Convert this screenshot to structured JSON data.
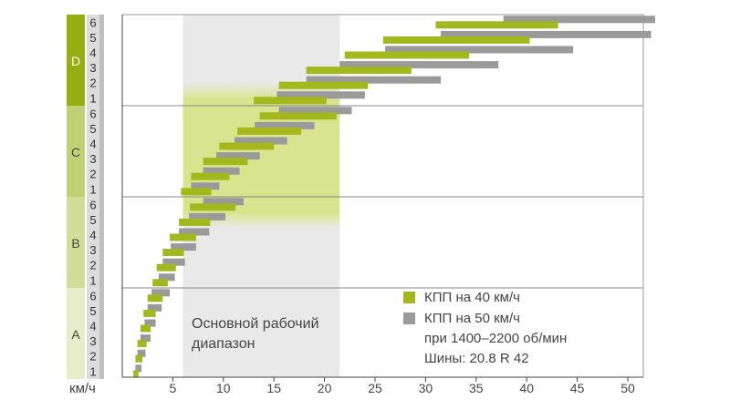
{
  "colors": {
    "series40": "#a3b81c",
    "series50": "#9a9a9a",
    "rangeA": "#e6edc8",
    "rangeB": "#d2de98",
    "rangeC": "#c0d174",
    "rangeD": "#98ad10",
    "gearCol": "#dcdcdc",
    "gearColDark": "#bfbfbf",
    "workingBand": "#e9e9e9",
    "workingBandGreen": "#d9e48f"
  },
  "legend": {
    "series40_label": "КПП на 40 км/ч",
    "series50_label": "КПП на 50 км/ч",
    "rpm_note": "при 1400–2200 об/мин",
    "tyres_note": "Шины: 20.8 R 42"
  },
  "working_range": {
    "label_line1": "Основной рабочий",
    "label_line2": "диапазон"
  },
  "chart_data": {
    "type": "bar",
    "orientation": "horizontal-floating",
    "xlabel": "км/ч",
    "xlim": [
      0,
      52
    ],
    "xticks": [
      5,
      10,
      15,
      20,
      25,
      30,
      35,
      40,
      45,
      50
    ],
    "working_range_kmh": [
      6,
      21.5
    ],
    "ranges": [
      {
        "name": "A",
        "gears": [
          "1",
          "2",
          "3",
          "4",
          "5",
          "6"
        ],
        "series40": [
          [
            1.1,
            1.6
          ],
          [
            1.3,
            2.0
          ],
          [
            1.5,
            2.4
          ],
          [
            1.8,
            2.8
          ],
          [
            2.1,
            3.3
          ],
          [
            2.5,
            4.0
          ]
        ],
        "series50": [
          [
            1.3,
            1.9
          ],
          [
            1.5,
            2.3
          ],
          [
            1.8,
            2.8
          ],
          [
            2.2,
            3.3
          ],
          [
            2.5,
            3.9
          ],
          [
            2.9,
            4.7
          ]
        ]
      },
      {
        "name": "B",
        "gears": [
          "1",
          "2",
          "3",
          "4",
          "5",
          "6"
        ],
        "series40": [
          [
            3.0,
            4.5
          ],
          [
            3.4,
            5.3
          ],
          [
            4.0,
            6.1
          ],
          [
            4.7,
            7.3
          ],
          [
            5.6,
            8.7
          ],
          [
            6.7,
            11.2
          ]
        ],
        "series50": [
          [
            3.6,
            5.2
          ],
          [
            4.0,
            6.2
          ],
          [
            4.8,
            7.3
          ],
          [
            5.6,
            8.6
          ],
          [
            6.6,
            10.2
          ],
          [
            8.0,
            12.0
          ]
        ]
      },
      {
        "name": "C",
        "gears": [
          "1",
          "2",
          "3",
          "4",
          "5",
          "6"
        ],
        "series40": [
          [
            5.8,
            8.8
          ],
          [
            6.8,
            10.6
          ],
          [
            8.0,
            12.4
          ],
          [
            9.6,
            15.0
          ],
          [
            11.4,
            17.7
          ],
          [
            13.6,
            21.2
          ]
        ],
        "series50": [
          [
            6.8,
            9.6
          ],
          [
            8.0,
            11.6
          ],
          [
            9.3,
            13.6
          ],
          [
            11.1,
            16.3
          ],
          [
            13.1,
            19.0
          ],
          [
            15.5,
            22.7
          ]
        ]
      },
      {
        "name": "D",
        "gears": [
          "1",
          "2",
          "3",
          "4",
          "5",
          "6"
        ],
        "series40": [
          [
            13.0,
            20.2
          ],
          [
            15.5,
            24.3
          ],
          [
            18.2,
            28.6
          ],
          [
            22.0,
            34.3
          ],
          [
            25.8,
            40.3
          ],
          [
            31.0,
            43.1
          ]
        ],
        "series50": [
          [
            15.3,
            24.0
          ],
          [
            18.2,
            31.5
          ],
          [
            21.5,
            37.2
          ],
          [
            26.0,
            44.6
          ],
          [
            31.5,
            52.3
          ],
          [
            37.7,
            52.7
          ]
        ]
      }
    ]
  }
}
